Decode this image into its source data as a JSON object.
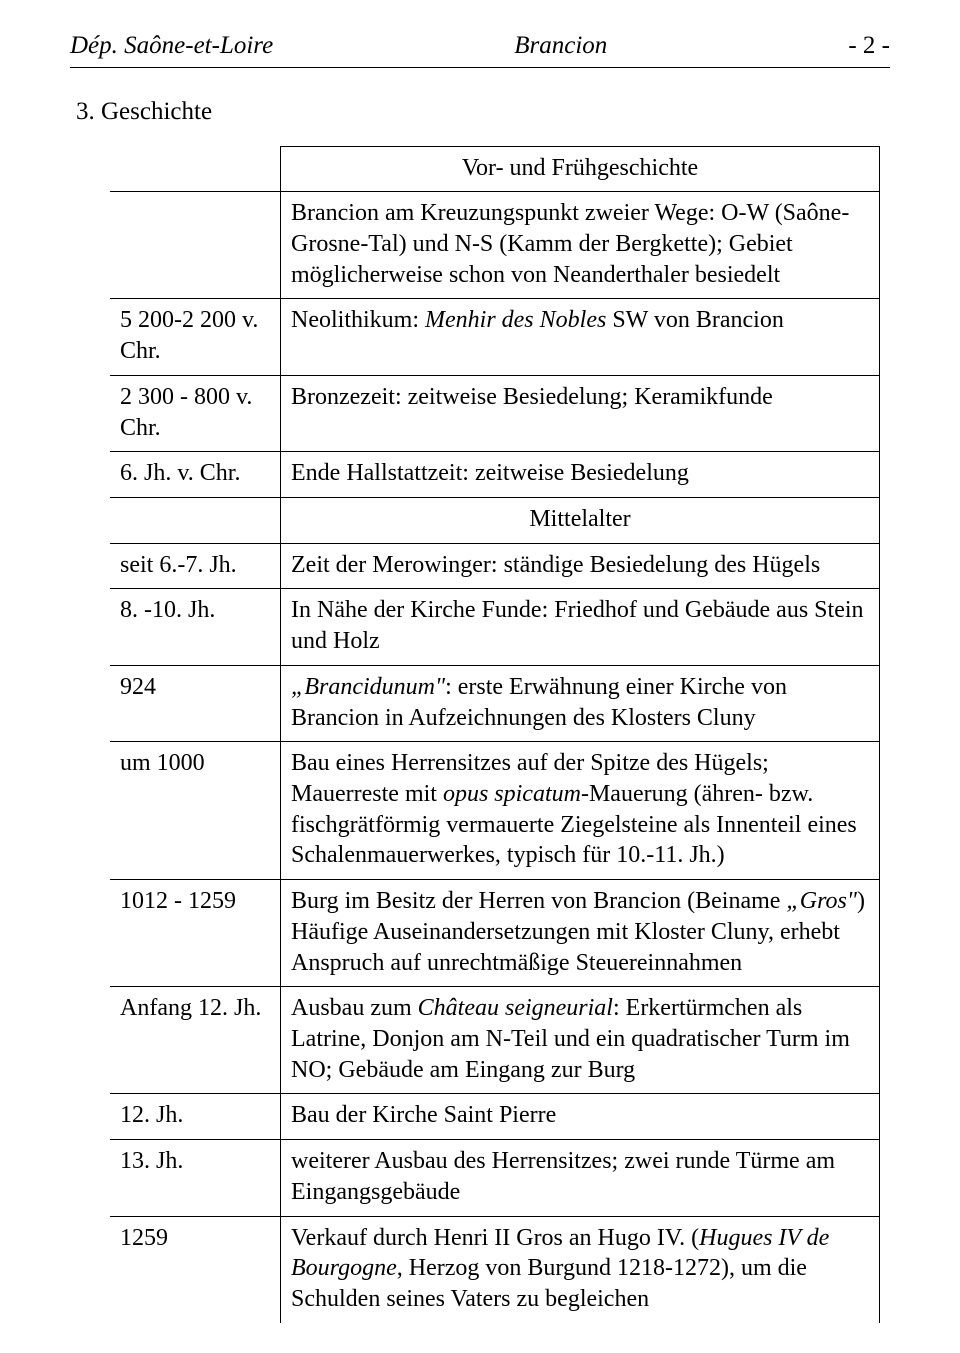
{
  "header": {
    "left": "Dép. Saône-et-Loire",
    "center": "Brancion",
    "right": "- 2 -"
  },
  "section_number": "3. Geschichte",
  "era1_title": "Vor- und Frühgeschichte",
  "era2_title": "Mittelalter",
  "rows": {
    "intro_text_before": "Brancion am Kreuzungspunkt zweier Wege: O-W (Saône-Grosne-Tal) und N-S (Kamm der Bergkette); Gebiet möglicherweise schon von Neanderthaler besiedelt",
    "r1_date": "5 200-2 200 v. Chr.",
    "r1_text_a": "Neolithikum: ",
    "r1_text_b": "Menhir des Nobles",
    "r1_text_c": " SW von Brancion",
    "r2_date": "2 300 - 800 v. Chr.",
    "r2_text": "Bronzezeit: zeitweise Besiedelung; Keramikfunde",
    "r3_date": "6. Jh. v. Chr.",
    "r3_text": "Ende Hallstattzeit: zeitweise Besiedelung",
    "r4_date": "seit 6.-7. Jh.",
    "r4_text": "Zeit der  Merowinger: ständige Besiedelung des Hügels",
    "r5_date": "8. -10. Jh.",
    "r5_text": "In Nähe der Kirche Funde: Friedhof und Gebäude aus Stein und Holz",
    "r6_date": "924",
    "r6_text_a": "„Brancidunum\"",
    "r6_text_b": ": erste Erwähnung einer Kirche von Brancion in Aufzeichnungen des Klosters Cluny",
    "r7_date": "um 1000",
    "r7_text_a": "Bau eines Herrensitzes auf der Spitze des Hügels; Mauerreste mit ",
    "r7_text_b": "opus spicatum",
    "r7_text_c": "-Mauerung (ähren- bzw. fischgrätförmig vermauerte Ziegelsteine als Innenteil eines Schalenmauerwerkes, typisch für 10.-11. Jh.)",
    "r8_date": "1012 - 1259",
    "r8_text_a": "Burg im Besitz der Herren von Brancion (Beiname ",
    "r8_text_b": "„Gros\"",
    "r8_text_c": ") Häufige Auseinandersetzungen mit Kloster Cluny, erhebt Anspruch auf unrechtmäßige Steuereinnahmen",
    "r9_date": "Anfang 12. Jh.",
    "r9_text_a": "Ausbau zum ",
    "r9_text_b": "Château seigneurial",
    "r9_text_c": ": Erkertürmchen als Latrine, Donjon am N-Teil und ein quadratischer Turm im NO; Gebäude am Eingang zur Burg",
    "r10_date": "12. Jh.",
    "r10_text": "Bau der Kirche Saint Pierre",
    "r11_date": "13. Jh.",
    "r11_text": "weiterer Ausbau des Herrensitzes; zwei runde Türme am Eingangsgebäude",
    "r12_date": "1259",
    "r12_text_a": "Verkauf durch Henri II Gros an Hugo IV. (",
    "r12_text_b": "Hugues IV de Bourgogne",
    "r12_text_c": ", Herzog von Burgund 1218-1272), um die Schulden seines Vaters zu begleichen"
  }
}
